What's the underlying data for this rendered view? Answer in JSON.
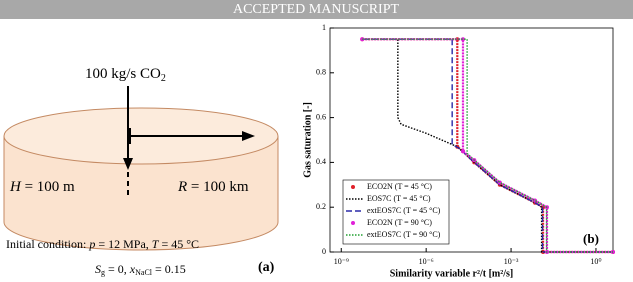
{
  "header": "ACCEPTED MANUSCRIPT",
  "diagram": {
    "injection": [
      "100 kg/s CO",
      "2"
    ],
    "height": [
      "H",
      " = 100 m"
    ],
    "radius": [
      "R",
      " = 100 km"
    ],
    "condition_line1": [
      "Initial condition: ",
      "p",
      " = 12 MPa, ",
      "T",
      " = 45 °C"
    ],
    "condition_line2": [
      "S",
      "g",
      " = 0, ",
      "x",
      "NaCl",
      " = 0.15"
    ],
    "panel": "(a)"
  },
  "chart_data": {
    "type": "line",
    "annotation": "(b)",
    "xlabel": "Similarity variable r²/t [m²/s]",
    "ylabel": "Gas saturation [-]",
    "log_x": true,
    "grid": false,
    "legend": "lower-left",
    "xlim": [
      4e-10,
      4
    ],
    "ylim": [
      0,
      1
    ],
    "xticks": [
      {
        "value": 1e-09,
        "label": "10⁻⁹"
      },
      {
        "value": 1e-06,
        "label": "10⁻⁶"
      },
      {
        "value": 0.001,
        "label": "10⁻³"
      },
      {
        "value": 1,
        "label": "10⁰"
      }
    ],
    "yticks": [
      0,
      0.2,
      0.4,
      0.6,
      0.8,
      1
    ],
    "series": [
      {
        "name": "ECO2N (T = 45 °C)",
        "color": "#e0202a",
        "style": "points",
        "x": [
          5.5e-09,
          1.26e-05,
          1.26e-05,
          2e-05,
          5e-05,
          0.0004,
          0.007,
          0.0135,
          0.0135,
          4
        ],
        "values": [
          0.95,
          0.95,
          0.47,
          0.45,
          0.4,
          0.3,
          0.22,
          0.2,
          0,
          0
        ]
      },
      {
        "name": "EOS7C (T = 45 °C)",
        "color": "#000000",
        "style": "dotted",
        "x": [
          5.5e-09,
          1e-07,
          1e-07,
          1.3e-07,
          1e-06,
          1.26e-05,
          5e-05,
          0.0004,
          0.007,
          0.012,
          0.012,
          4
        ],
        "values": [
          0.95,
          0.95,
          0.6,
          0.57,
          0.53,
          0.47,
          0.4,
          0.3,
          0.22,
          0.2,
          0,
          0
        ]
      },
      {
        "name": "extEOS7C (T = 45 °C)",
        "color": "#2a2aa8",
        "style": "dashed",
        "x": [
          5.5e-09,
          8.3e-06,
          8.3e-06,
          1.6e-05,
          5e-05,
          0.0004,
          0.007,
          0.013,
          0.013,
          4
        ],
        "values": [
          0.95,
          0.95,
          0.48,
          0.46,
          0.4,
          0.3,
          0.22,
          0.2,
          0,
          0
        ]
      },
      {
        "name": "ECO2N (T = 90 °C)",
        "color": "#e020d8",
        "style": "points",
        "x": [
          5.5e-09,
          2e-05,
          2e-05,
          5e-05,
          0.0004,
          0.007,
          0.0186,
          0.0186,
          4
        ],
        "values": [
          0.95,
          0.95,
          0.45,
          0.41,
          0.31,
          0.23,
          0.2,
          0,
          0
        ]
      },
      {
        "name": "extEOS7C (T = 90 °C)",
        "color": "#20a030",
        "style": "dotted",
        "x": [
          5.5e-09,
          2.8e-05,
          2.8e-05,
          5e-05,
          0.0004,
          0.007,
          0.018,
          0.018,
          4
        ],
        "values": [
          0.95,
          0.95,
          0.44,
          0.41,
          0.31,
          0.23,
          0.2,
          0,
          0
        ]
      }
    ]
  }
}
